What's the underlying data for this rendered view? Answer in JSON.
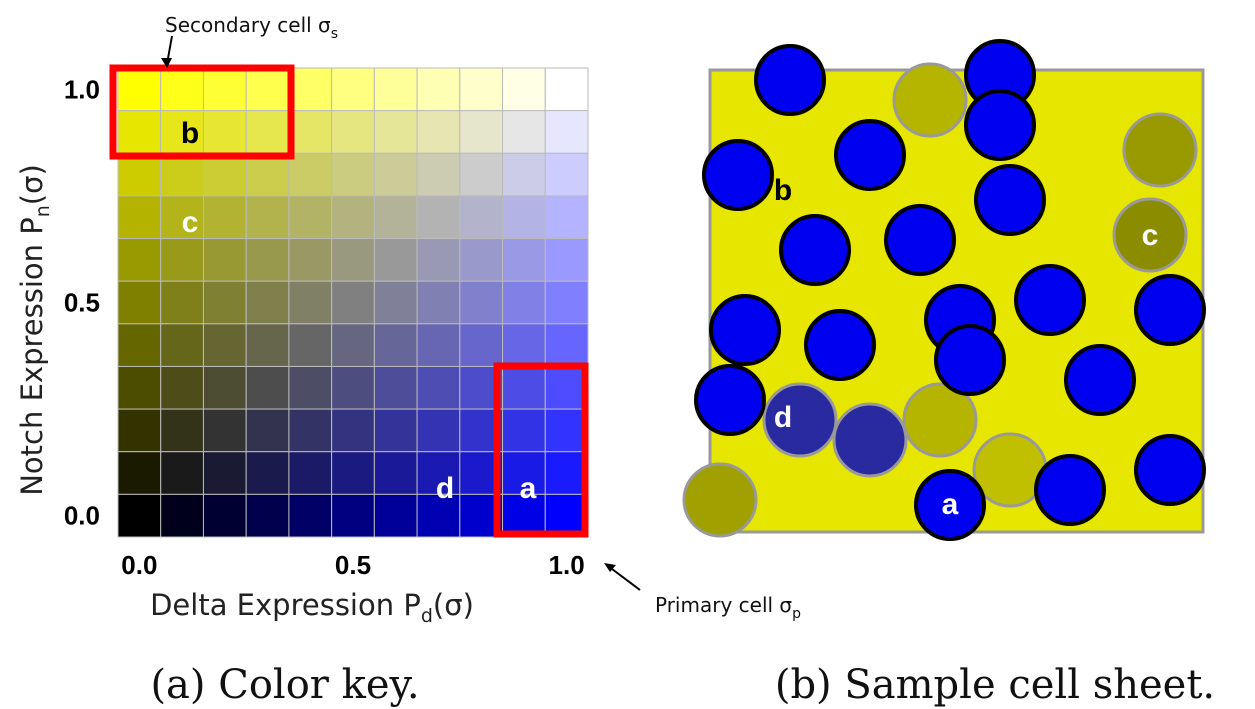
{
  "color_key": {
    "caption": "(a) Color key.",
    "x_axis": {
      "label": "Delta Expression P",
      "label_sub": "d",
      "label_end": "(σ)",
      "xlim": [
        -0.05,
        1.05
      ],
      "ticks": [
        {
          "value": 0,
          "label": "0.0"
        },
        {
          "value": 0.5,
          "label": "0.5"
        },
        {
          "value": 1,
          "label": "1.0"
        }
      ]
    },
    "y_axis": {
      "label": "Notch Expression P",
      "label_sub": "n",
      "label_end": "(σ)",
      "ylim": [
        -0.05,
        1.05
      ],
      "ticks": [
        {
          "value": 0,
          "label": "0.0"
        },
        {
          "value": 0.5,
          "label": "0.5"
        },
        {
          "value": 1,
          "label": "1.0"
        }
      ]
    },
    "secondary_annotation": {
      "text": "Secondary cell σ",
      "sub": "s"
    },
    "primary_annotation": {
      "text": "Primary cell σ",
      "sub": "p"
    },
    "markers": [
      "b",
      "c",
      "d",
      "a"
    ]
  },
  "cell_sheet": {
    "caption": "(b) Sample cell sheet.",
    "markers": [
      "b",
      "c",
      "d",
      "a"
    ]
  }
}
